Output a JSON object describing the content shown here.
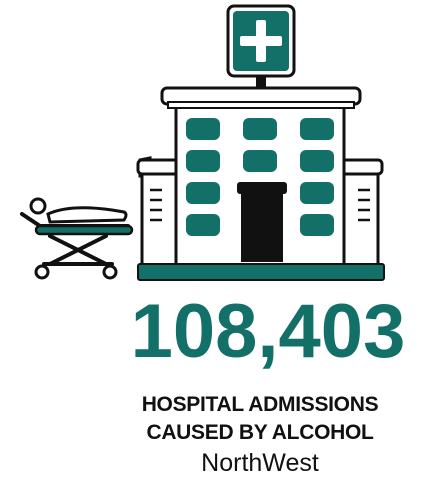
{
  "stat": {
    "value": "108,403"
  },
  "caption": {
    "line1": "HOSPITAL ADMISSIONS",
    "line2": "CAUSED BY ALCOHOL",
    "region": "NorthWest"
  },
  "colors": {
    "teal": "#127068",
    "outline": "#111111",
    "background": "#ffffff"
  },
  "icons": {
    "building": "hospital-building-icon",
    "sign": "medical-cross-sign-icon",
    "stretcher": "stretcher-icon"
  }
}
